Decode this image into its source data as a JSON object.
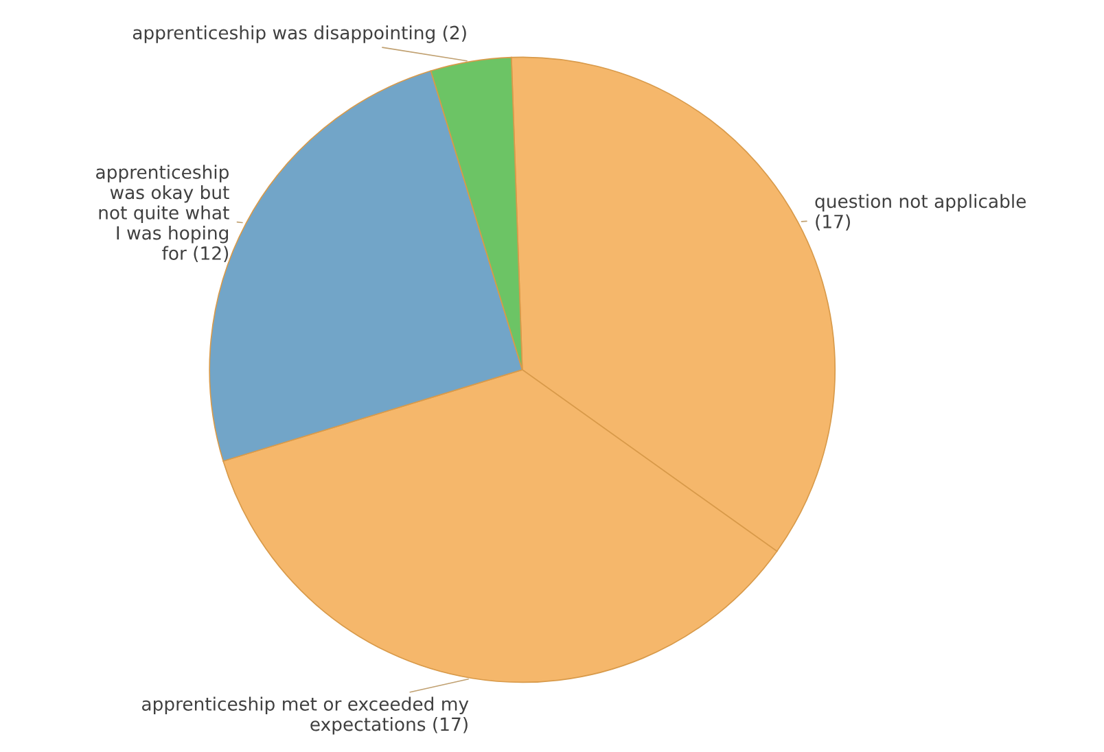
{
  "chart_data": {
    "type": "pie",
    "categories": [
      "question not applicable\n(17)",
      "apprenticeship met or exceeded my\nexpectations (17)",
      "apprenticeship\nwas okay but\nnot quite what\nI was hoping\nfor (12)",
      "apprenticeship was disappointing (2)"
    ],
    "values": [
      17,
      17,
      12,
      2
    ],
    "colors": [
      "#f5b76b",
      "#f5b76b",
      "#72a5c8",
      "#6cc465"
    ],
    "legend": false
  }
}
